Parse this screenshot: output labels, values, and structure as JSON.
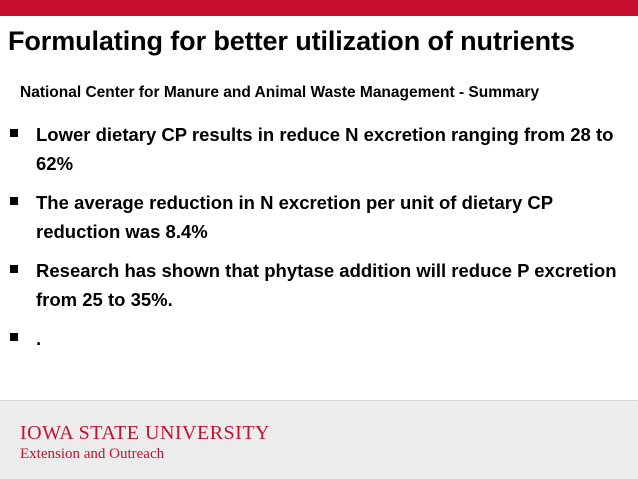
{
  "slide": {
    "title": "Formulating for better utilization of nutrients",
    "subtitle": "National Center for Manure and Animal Waste Management - Summary",
    "bullets": [
      {
        "text": "Lower dietary CP results in reduce N excretion ranging from 28 to 62%"
      },
      {
        "text": "The average reduction in N excretion per unit of dietary CP reduction was 8.4%"
      },
      {
        "text": "Research has shown that phytase addition will reduce P excretion from 25 to 35%."
      },
      {
        "text": "."
      }
    ]
  },
  "footer": {
    "brand_name": "Iowa State University",
    "brand_unit": "Extension and Outreach"
  },
  "colors": {
    "brand_red": "#c8102e",
    "footer_gray": "#ececec"
  }
}
